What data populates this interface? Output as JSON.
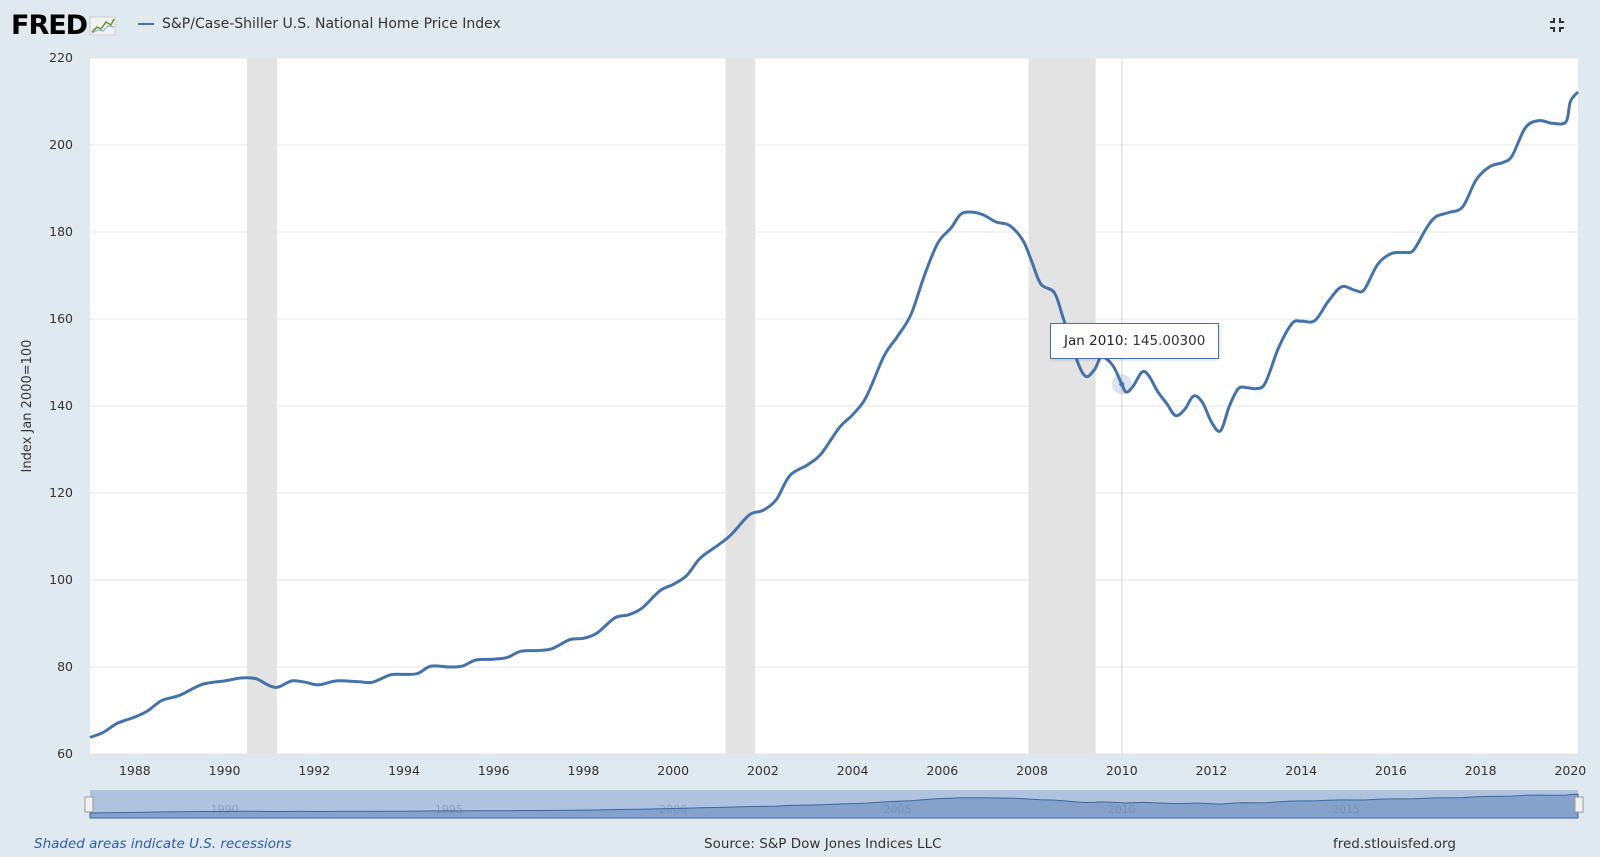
{
  "header": {
    "logo_text": "FRED",
    "legend_label": "S&P/Case-Shiller U.S. National Home Price Index",
    "fullscreen_icon": "exit-fullscreen-icon"
  },
  "tooltip": {
    "date": "Jan 2010:",
    "value": "145.00300"
  },
  "footer": {
    "recession_note": "Shaded areas indicate U.S. recessions",
    "source": "Source: S&P Dow Jones Indices LLC",
    "site": "fred.stlouisfed.org"
  },
  "navigator": {
    "labels": [
      "1990",
      "1995",
      "2000",
      "2005",
      "2010",
      "2015"
    ]
  },
  "colors": {
    "series": "#4572a7",
    "background": "#e1e9f0",
    "recession": "#e3e3e3",
    "navigator": "#8fabd1"
  },
  "chart_data": {
    "type": "line",
    "ylabel": "Index Jan 2000=100",
    "ylim": [
      60,
      220
    ],
    "yticks": [
      60,
      80,
      100,
      120,
      140,
      160,
      180,
      200,
      220
    ],
    "xlim": [
      1987.0,
      2020.17
    ],
    "xticks": [
      1988,
      1990,
      1992,
      1994,
      1996,
      1998,
      2000,
      2002,
      2004,
      2006,
      2008,
      2010,
      2012,
      2014,
      2016,
      2018,
      2020
    ],
    "grid": true,
    "recessions": [
      [
        1990.5,
        1991.17
      ],
      [
        2001.17,
        2001.83
      ],
      [
        2007.92,
        2009.42
      ]
    ],
    "series": [
      {
        "name": "S&P/Case-Shiller U.S. National Home Price Index",
        "color": "#4572a7",
        "points": [
          [
            1987.0,
            63.8
          ],
          [
            1987.3,
            65.0
          ],
          [
            1987.6,
            67.0
          ],
          [
            1988.0,
            68.5
          ],
          [
            1988.3,
            70.0
          ],
          [
            1988.6,
            72.3
          ],
          [
            1989.0,
            73.5
          ],
          [
            1989.5,
            76.0
          ],
          [
            1990.0,
            76.8
          ],
          [
            1990.4,
            77.5
          ],
          [
            1990.7,
            77.3
          ],
          [
            1991.0,
            75.7
          ],
          [
            1991.2,
            75.4
          ],
          [
            1991.5,
            76.8
          ],
          [
            1991.8,
            76.5
          ],
          [
            1992.1,
            75.9
          ],
          [
            1992.5,
            76.8
          ],
          [
            1993.0,
            76.6
          ],
          [
            1993.3,
            76.5
          ],
          [
            1993.7,
            78.2
          ],
          [
            1994.0,
            78.3
          ],
          [
            1994.3,
            78.5
          ],
          [
            1994.6,
            80.2
          ],
          [
            1995.0,
            80.0
          ],
          [
            1995.3,
            80.2
          ],
          [
            1995.6,
            81.6
          ],
          [
            1996.0,
            81.8
          ],
          [
            1996.3,
            82.2
          ],
          [
            1996.6,
            83.6
          ],
          [
            1997.0,
            83.8
          ],
          [
            1997.3,
            84.2
          ],
          [
            1997.7,
            86.3
          ],
          [
            1998.0,
            86.6
          ],
          [
            1998.3,
            87.8
          ],
          [
            1998.7,
            91.3
          ],
          [
            1999.0,
            92.0
          ],
          [
            1999.3,
            93.5
          ],
          [
            1999.7,
            97.5
          ],
          [
            2000.0,
            99.0
          ],
          [
            2000.3,
            101.0
          ],
          [
            2000.6,
            105.0
          ],
          [
            2001.0,
            108.0
          ],
          [
            2001.3,
            110.5
          ],
          [
            2001.7,
            115.0
          ],
          [
            2002.0,
            116.0
          ],
          [
            2002.3,
            118.5
          ],
          [
            2002.6,
            124.0
          ],
          [
            2003.0,
            126.5
          ],
          [
            2003.3,
            129.0
          ],
          [
            2003.7,
            135.0
          ],
          [
            2004.0,
            138.0
          ],
          [
            2004.3,
            142.0
          ],
          [
            2004.7,
            151.5
          ],
          [
            2005.0,
            156.0
          ],
          [
            2005.3,
            161.0
          ],
          [
            2005.6,
            170.0
          ],
          [
            2005.9,
            177.5
          ],
          [
            2006.2,
            181.0
          ],
          [
            2006.4,
            184.0
          ],
          [
            2006.6,
            184.6
          ],
          [
            2006.9,
            184.0
          ],
          [
            2007.2,
            182.3
          ],
          [
            2007.5,
            181.5
          ],
          [
            2007.8,
            178.0
          ],
          [
            2008.0,
            173.0
          ],
          [
            2008.2,
            168.0
          ],
          [
            2008.5,
            166.0
          ],
          [
            2008.7,
            160.0
          ],
          [
            2009.0,
            150.5
          ],
          [
            2009.2,
            146.8
          ],
          [
            2009.4,
            148.5
          ],
          [
            2009.55,
            151.3
          ],
          [
            2009.8,
            149.3
          ],
          [
            2010.0,
            145.0
          ],
          [
            2010.1,
            143.2
          ],
          [
            2010.25,
            144.5
          ],
          [
            2010.45,
            147.8
          ],
          [
            2010.6,
            147.0
          ],
          [
            2010.8,
            143.3
          ],
          [
            2011.0,
            140.6
          ],
          [
            2011.2,
            137.8
          ],
          [
            2011.4,
            139.2
          ],
          [
            2011.6,
            142.3
          ],
          [
            2011.8,
            140.8
          ],
          [
            2012.0,
            136.3
          ],
          [
            2012.2,
            134.3
          ],
          [
            2012.4,
            140.0
          ],
          [
            2012.6,
            144.0
          ],
          [
            2012.8,
            144.2
          ],
          [
            2013.0,
            144.0
          ],
          [
            2013.2,
            145.3
          ],
          [
            2013.5,
            153.5
          ],
          [
            2013.8,
            159.0
          ],
          [
            2014.0,
            159.5
          ],
          [
            2014.3,
            159.6
          ],
          [
            2014.6,
            164.0
          ],
          [
            2014.9,
            167.4
          ],
          [
            2015.2,
            166.6
          ],
          [
            2015.4,
            166.7
          ],
          [
            2015.7,
            172.5
          ],
          [
            2016.0,
            175.0
          ],
          [
            2016.3,
            175.3
          ],
          [
            2016.5,
            175.8
          ],
          [
            2016.8,
            181.0
          ],
          [
            2017.0,
            183.5
          ],
          [
            2017.3,
            184.5
          ],
          [
            2017.6,
            185.8
          ],
          [
            2017.9,
            192.0
          ],
          [
            2018.2,
            195.0
          ],
          [
            2018.5,
            196.0
          ],
          [
            2018.7,
            197.5
          ],
          [
            2019.0,
            204.0
          ],
          [
            2019.3,
            205.6
          ],
          [
            2019.6,
            205.0
          ],
          [
            2019.9,
            205.3
          ],
          [
            2020.0,
            210.0
          ],
          [
            2020.17,
            212.2
          ]
        ]
      }
    ],
    "tooltip_point": [
      2010.0,
      145.003
    ]
  }
}
